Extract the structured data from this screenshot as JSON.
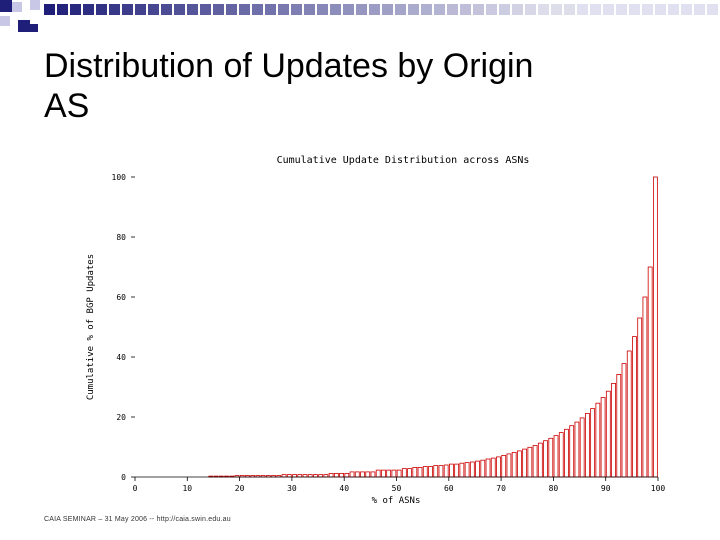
{
  "slide": {
    "title_line1": "Distribution of Updates by Origin",
    "title_line2": "AS",
    "footer": "CAIA SEMINAR – 31 May 2006 -- http://caia.swin.edu.au"
  },
  "colors": {
    "bar": "#cc0000",
    "square_dark": "#1f1f7a",
    "square_light": "#c8c8e6",
    "axis": "#000000"
  },
  "chart_data": {
    "type": "bar",
    "title": "Cumulative Update Distribution across ASNs",
    "xlabel": "% of ASNs",
    "ylabel": "Cumulative % of BGP Updates",
    "xlim": [
      0,
      100
    ],
    "ylim": [
      0,
      100
    ],
    "xticks": [
      0,
      10,
      20,
      30,
      40,
      50,
      60,
      70,
      80,
      90,
      100
    ],
    "yticks": [
      0,
      20,
      40,
      60,
      80,
      100
    ],
    "grid": false,
    "x": [
      1,
      2,
      3,
      4,
      5,
      6,
      7,
      8,
      9,
      10,
      11,
      12,
      13,
      14,
      15,
      16,
      17,
      18,
      19,
      20,
      21,
      22,
      23,
      24,
      25,
      26,
      27,
      28,
      29,
      30,
      31,
      32,
      33,
      34,
      35,
      36,
      37,
      38,
      39,
      40,
      41,
      42,
      43,
      44,
      45,
      46,
      47,
      48,
      49,
      50,
      51,
      52,
      53,
      54,
      55,
      56,
      57,
      58,
      59,
      60,
      61,
      62,
      63,
      64,
      65,
      66,
      67,
      68,
      69,
      70,
      71,
      72,
      73,
      74,
      75,
      76,
      77,
      78,
      79,
      80,
      81,
      82,
      83,
      84,
      85,
      86,
      87,
      88,
      89,
      90,
      91,
      92,
      93,
      94,
      95,
      96,
      97,
      98,
      99,
      100
    ],
    "values": [
      0,
      0,
      0,
      0,
      0,
      0,
      0,
      0,
      0,
      0,
      0,
      0,
      0,
      0,
      0.3,
      0.3,
      0.3,
      0.3,
      0.3,
      0.5,
      0.5,
      0.5,
      0.5,
      0.5,
      0.5,
      0.5,
      0.5,
      0.5,
      0.8,
      0.8,
      0.8,
      0.8,
      0.8,
      0.8,
      0.8,
      0.8,
      0.8,
      1.2,
      1.2,
      1.2,
      1.2,
      1.7,
      1.7,
      1.7,
      1.7,
      1.7,
      2.3,
      2.3,
      2.3,
      2.3,
      2.3,
      2.8,
      2.8,
      3.2,
      3.2,
      3.5,
      3.5,
      3.8,
      3.8,
      4.0,
      4.3,
      4.3,
      4.6,
      4.8,
      5.0,
      5.3,
      5.6,
      6.0,
      6.3,
      6.7,
      7.2,
      7.7,
      8.2,
      8.7,
      9.3,
      9.9,
      10.5,
      11.3,
      12.1,
      12.9,
      13.8,
      14.8,
      15.9,
      17.1,
      18.3,
      19.7,
      21.2,
      22.8,
      24.6,
      26.5,
      28.6,
      31.2,
      34.2,
      37.8,
      42.0,
      46.8,
      53.0,
      60.0,
      70.0,
      100.0
    ]
  }
}
